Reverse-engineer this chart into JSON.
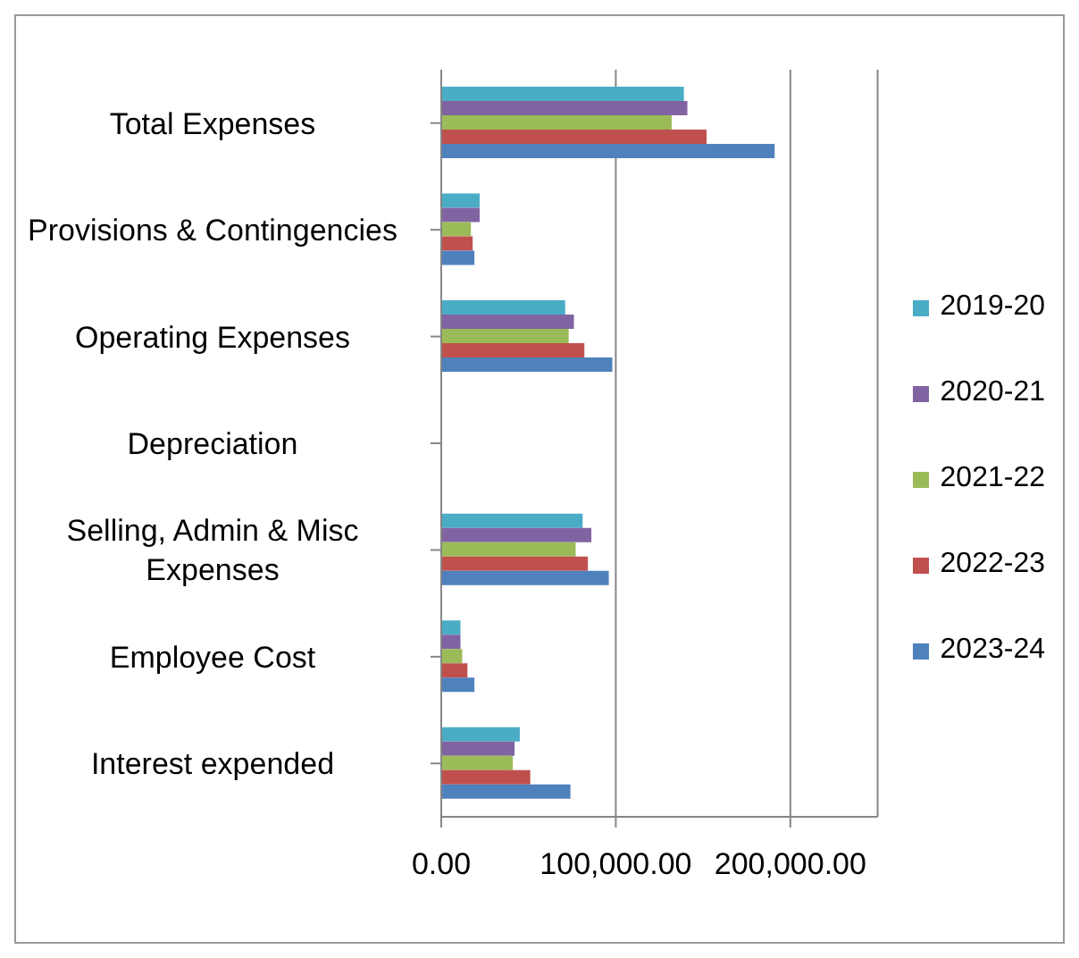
{
  "chart_data": {
    "type": "bar",
    "orientation": "horizontal",
    "categories": [
      "Total Expenses",
      "Provisions & Contingencies",
      "Operating Expenses",
      "Depreciation",
      "Selling, Admin & Misc Expenses",
      "Employee Cost",
      "Interest expended"
    ],
    "series": [
      {
        "name": "2019-20",
        "color": "#4bacc6",
        "values": [
          139000,
          22000,
          71000,
          0,
          81000,
          11000,
          45000
        ]
      },
      {
        "name": "2020-21",
        "color": "#8064a2",
        "values": [
          141000,
          22000,
          76000,
          0,
          86000,
          11000,
          42000
        ]
      },
      {
        "name": "2021-22",
        "color": "#9bbb59",
        "values": [
          132000,
          17000,
          73000,
          0,
          77000,
          12000,
          41000
        ]
      },
      {
        "name": "2022-23",
        "color": "#c0504d",
        "values": [
          152000,
          18000,
          82000,
          null,
          84000,
          15000,
          51000
        ]
      },
      {
        "name": "2023-24",
        "color": "#4f81bd",
        "values": [
          191000,
          19000,
          98000,
          null,
          96000,
          19000,
          74000
        ]
      }
    ],
    "xlim": [
      0,
      250000
    ],
    "xticks": [
      {
        "value": 0,
        "label": "0.00"
      },
      {
        "value": 100000,
        "label": "100,000.00"
      },
      {
        "value": 200000,
        "label": "200,000.00"
      }
    ],
    "grid": "x",
    "legend": "right"
  }
}
